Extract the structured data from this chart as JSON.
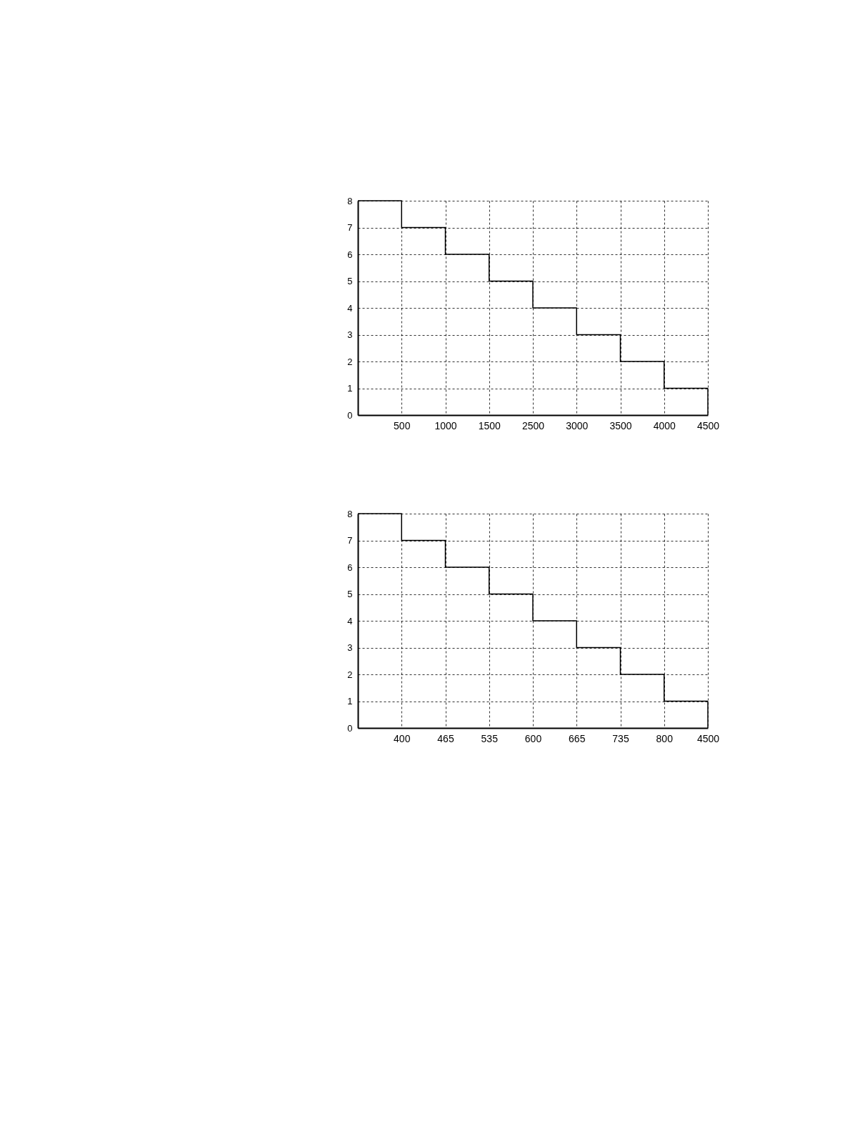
{
  "chart_data": [
    {
      "type": "step",
      "categories": [
        null,
        "500",
        "1000",
        "1500",
        "2500",
        "3000",
        "3500",
        "4000",
        "4500"
      ],
      "values": [
        8,
        8,
        7,
        6,
        5,
        4,
        3,
        2,
        1
      ],
      "color": "#000000",
      "ylim": [
        0,
        8
      ],
      "yticks": [
        0,
        1,
        2,
        3,
        4,
        5,
        6,
        7,
        8
      ],
      "grid": true
    },
    {
      "type": "step",
      "categories": [
        null,
        "400",
        "465",
        "535",
        "600",
        "665",
        "735",
        "800",
        "4500"
      ],
      "values": [
        8,
        8,
        7,
        6,
        5,
        4,
        3,
        2,
        1
      ],
      "color": "#000000",
      "ylim": [
        0,
        8
      ],
      "yticks": [
        0,
        1,
        2,
        3,
        4,
        5,
        6,
        7,
        8
      ],
      "grid": true
    }
  ]
}
